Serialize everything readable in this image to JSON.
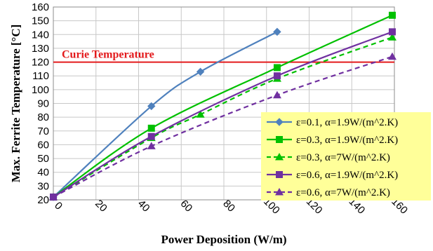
{
  "chart_data": {
    "type": "line",
    "title": "",
    "xlabel": "Power Deposition (W/m)",
    "ylabel": "Max. Ferrite Temperature [°C]",
    "xlim": [
      0,
      160
    ],
    "ylim": [
      20,
      160
    ],
    "x_ticks": [
      "0",
      "20",
      "40",
      "60",
      "80",
      "100",
      "120",
      "140",
      "160"
    ],
    "y_ticks": [
      "20",
      "30",
      "40",
      "50",
      "60",
      "70",
      "80",
      "90",
      "100",
      "110",
      "120",
      "130",
      "140",
      "150",
      "160"
    ],
    "grid": true,
    "legend_position": "bottom-right",
    "legend_background": "#ffff99",
    "reference_line": {
      "label": "Curie Temperature",
      "y": 120,
      "color": "#e31a1c"
    },
    "series": [
      {
        "name": "ε=0.1, α=1.9W/(m^2.K)",
        "color": "#4f81bd",
        "marker": "diamond",
        "dashed": false,
        "x": [
          0,
          46,
          69,
          105
        ],
        "y": [
          22,
          88,
          113,
          142
        ]
      },
      {
        "name": "ε=0.3, α=1.9W/(m^2.K)",
        "color": "#00c000",
        "marker": "square",
        "dashed": false,
        "x": [
          0,
          46,
          105,
          159
        ],
        "y": [
          22,
          72,
          116,
          154
        ]
      },
      {
        "name": "ε=0.3, α=7W/(m^2.K)",
        "color": "#00c000",
        "marker": "triangle",
        "dashed": true,
        "x": [
          0,
          46,
          69,
          105,
          159
        ],
        "y": [
          22,
          65,
          82,
          108,
          138
        ]
      },
      {
        "name": "ε=0.6, α=1.9W/(m^2.K)",
        "color": "#7030a0",
        "marker": "square",
        "dashed": false,
        "x": [
          0,
          46,
          105,
          159
        ],
        "y": [
          22,
          66,
          110,
          142
        ]
      },
      {
        "name": "ε=0.6, α=7W/(m^2.K)",
        "color": "#7030a0",
        "marker": "triangle",
        "dashed": true,
        "x": [
          0,
          46,
          105,
          159
        ],
        "y": [
          22,
          59,
          96,
          124
        ]
      }
    ]
  }
}
